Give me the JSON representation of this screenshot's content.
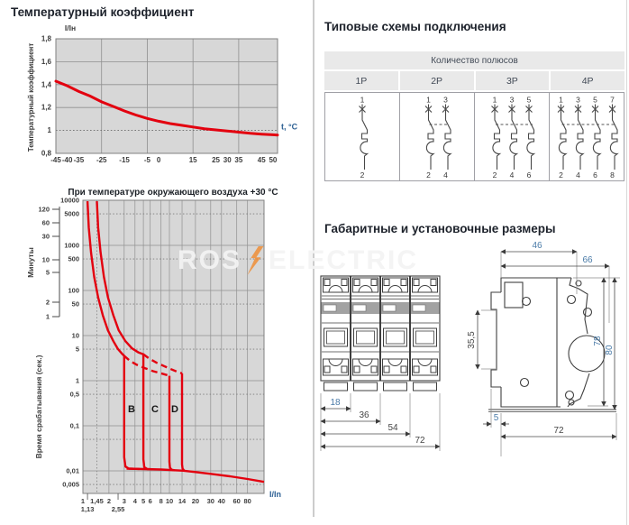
{
  "sections": {
    "temp_title": "Температурный коэффициент",
    "schemes_title": "Типовые схемы подключения",
    "dims_title": "Габаритные и установочные размеры"
  },
  "watermark": {
    "left": "ROS",
    "right": "ELECTRIC",
    "bolt_color": "#f08a2d"
  },
  "schemes": {
    "header": "Количество полюсов",
    "columns": [
      "1P",
      "2P",
      "3P",
      "4P"
    ],
    "diagrams": [
      {
        "poles": 1,
        "top": [
          "1"
        ],
        "bottom": [
          "2"
        ]
      },
      {
        "poles": 2,
        "top": [
          "1",
          "3"
        ],
        "bottom": [
          "2",
          "4"
        ]
      },
      {
        "poles": 3,
        "top": [
          "1",
          "3",
          "5"
        ],
        "bottom": [
          "2",
          "4",
          "6"
        ]
      },
      {
        "poles": 4,
        "top": [
          "1",
          "3",
          "5",
          "7"
        ],
        "bottom": [
          "2",
          "4",
          "6",
          "8"
        ]
      }
    ]
  },
  "dimensions": {
    "front": {
      "d18": "18",
      "d36": "36",
      "d54": "54",
      "d72": "72"
    },
    "side": {
      "d46": "46",
      "d66": "66",
      "d355": "35,5",
      "d78": "78",
      "d80": "80",
      "d5": "5",
      "d72": "72"
    }
  },
  "chart_data": [
    {
      "type": "line",
      "title": "Температурный коэффициент",
      "xlabel": "t, °C",
      "ylabel": "Температурный коэффициент",
      "unit_top": "I/Iн",
      "unit_right": "t, °C",
      "xlim": [
        -45,
        52
      ],
      "ylim": [
        0.8,
        1.8
      ],
      "x_tick_values": [
        -45,
        -40,
        -35,
        -25,
        -15,
        -5,
        0,
        15,
        25,
        30,
        35,
        45,
        50
      ],
      "x_tick_labels": [
        "-45",
        "-40",
        "-35",
        "-25",
        "-15",
        "-5",
        "0",
        "15",
        "25",
        "30",
        "35",
        "45",
        "50"
      ],
      "y_tick_values": [
        1.8,
        1.6,
        1.4,
        1.2,
        1.0,
        0.8
      ],
      "y_tick_labels": [
        "1,8",
        "1,6",
        "1,4",
        "1,2",
        "1",
        "0,8"
      ],
      "grid_x": [
        -25,
        -5,
        15,
        35
      ],
      "grid_y": [
        1.6,
        1.4,
        1.2
      ],
      "dotted_y": [
        1.0
      ],
      "color": "#e3000f",
      "series": [
        {
          "name": "Температурный коэффициент",
          "x": [
            -45,
            -40,
            -35,
            -30,
            -25,
            -20,
            -15,
            -10,
            -5,
            0,
            5,
            10,
            15,
            20,
            25,
            30,
            35,
            40,
            45,
            50,
            52
          ],
          "y": [
            1.43,
            1.39,
            1.34,
            1.3,
            1.25,
            1.21,
            1.17,
            1.135,
            1.105,
            1.08,
            1.06,
            1.045,
            1.03,
            1.015,
            1.005,
            0.995,
            0.985,
            0.975,
            0.968,
            0.962,
            0.96
          ]
        }
      ]
    },
    {
      "type": "line",
      "title": "При температуре окружающего воздуха +30 °C",
      "xlabel": "I/In",
      "ylabel": "Время срабатывания (сек.)",
      "minutes_label": "Минуты",
      "x_scale": "log",
      "y_scale": "log",
      "xlim": [
        1,
        124
      ],
      "ylim": [
        0.0032,
        10000
      ],
      "x_tick_values": [
        1,
        1.45,
        2,
        3,
        4,
        5,
        6,
        8,
        10,
        14,
        20,
        30,
        40,
        60,
        80
      ],
      "x_tick_labels": [
        "1",
        "1,45",
        "2",
        "3",
        "4",
        "5",
        "6",
        "8",
        "10",
        "14",
        "20",
        "30",
        "40",
        "60",
        "80"
      ],
      "x_sub_tick_values": [
        1.13,
        2.55
      ],
      "x_sub_tick_labels": [
        "1,13",
        "2,55"
      ],
      "y_tick_values": [
        10000,
        5000,
        1000,
        500,
        100,
        50,
        10,
        5,
        1,
        0.5,
        0.1,
        0.01,
        0.005
      ],
      "y_tick_labels": [
        "10000",
        "5000",
        "1000",
        "500",
        "100",
        "50",
        "10",
        "5",
        "1",
        "0,5",
        "0,1",
        "0,01",
        "0,005"
      ],
      "minutes_tick_labels": [
        "120",
        "60",
        "30",
        "10",
        "5",
        "2",
        "1"
      ],
      "grid_x_solid": [
        2,
        3,
        4,
        5,
        6,
        8,
        10,
        14,
        20,
        30,
        40,
        60,
        80
      ],
      "grid_x_dotted": [
        1.45
      ],
      "grid_y_solid": [
        1000,
        100,
        10,
        1,
        0.1,
        0.01
      ],
      "grid_y_dotted": [
        5000,
        500,
        50,
        5,
        0.5,
        0.05,
        0.005
      ],
      "color": "#e3000f",
      "curve_labels": [
        {
          "text": "B",
          "x": 3.65,
          "t": 0.24
        },
        {
          "text": "C",
          "x": 6.8,
          "t": 0.24
        },
        {
          "text": "D",
          "x": 11.55,
          "t": 0.24
        }
      ],
      "curves_solid": [
        [
          [
            1.13,
            9500
          ],
          [
            1.17,
            2500
          ],
          [
            1.24,
            700
          ],
          [
            1.35,
            200
          ],
          [
            1.5,
            70
          ],
          [
            1.7,
            28
          ],
          [
            1.95,
            13
          ],
          [
            2.25,
            7.5
          ],
          [
            2.55,
            5
          ],
          [
            2.85,
            3.9
          ],
          [
            3.0,
            3.55
          ],
          [
            3.0,
            0.02
          ],
          [
            3.1,
            0.0125
          ],
          [
            3.4,
            0.0112
          ],
          [
            4.5,
            0.011
          ]
        ],
        [
          [
            1.45,
            9500
          ],
          [
            1.5,
            2500
          ],
          [
            1.6,
            700
          ],
          [
            1.75,
            200
          ],
          [
            1.95,
            70
          ],
          [
            2.25,
            28
          ],
          [
            2.6,
            13
          ],
          [
            3.1,
            7.5
          ],
          [
            3.7,
            5.2
          ],
          [
            4.4,
            4.2
          ],
          [
            5.0,
            3.85
          ],
          [
            5.0,
            0.018
          ],
          [
            5.12,
            0.0122
          ],
          [
            5.5,
            0.011
          ],
          [
            6.5,
            0.0108
          ]
        ],
        [
          [
            10,
            1.28
          ],
          [
            10,
            0.016
          ],
          [
            10.15,
            0.0118
          ],
          [
            10.6,
            0.0106
          ],
          [
            11.5,
            0.0103
          ]
        ],
        [
          [
            14,
            1.45
          ],
          [
            14,
            0.014
          ],
          [
            14.2,
            0.0112
          ],
          [
            14.8,
            0.0102
          ]
        ],
        [
          [
            3.2,
            0.0112
          ],
          [
            8,
            0.0107
          ],
          [
            14.5,
            0.0101
          ],
          [
            20,
            0.0094
          ],
          [
            30,
            0.0086
          ],
          [
            50,
            0.0076
          ],
          [
            80,
            0.0066
          ],
          [
            124,
            0.0057
          ]
        ]
      ],
      "curves_dashed": [
        [
          [
            3.0,
            3.55
          ],
          [
            3.5,
            2.75
          ],
          [
            4.2,
            2.25
          ],
          [
            5.2,
            1.9
          ],
          [
            6.5,
            1.62
          ],
          [
            8.0,
            1.45
          ],
          [
            9.4,
            1.33
          ],
          [
            10,
            1.28
          ]
        ],
        [
          [
            5.0,
            3.85
          ],
          [
            5.9,
            3.05
          ],
          [
            7.1,
            2.5
          ],
          [
            8.6,
            2.12
          ],
          [
            10.3,
            1.82
          ],
          [
            12.1,
            1.6
          ],
          [
            14,
            1.45
          ]
        ]
      ]
    }
  ]
}
